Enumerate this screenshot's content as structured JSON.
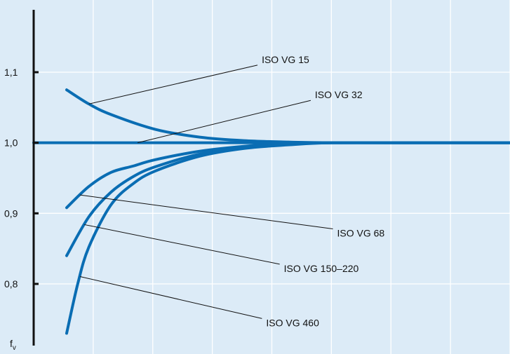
{
  "chart_data": {
    "type": "line",
    "title": "",
    "xlabel": "",
    "ylabel": "f",
    "ylabel_subscript": "v",
    "ylim": [
      0.72,
      1.1
    ],
    "yticks": [
      0.8,
      0.9,
      1.0,
      1.1
    ],
    "ytick_labels": [
      "0,8",
      "0,9",
      "1,0",
      "1,1"
    ],
    "x_gridlines": 8,
    "grid": true,
    "colors": {
      "series": "#0a6db3",
      "background": "#dcebf7",
      "grid": "#ffffff",
      "text": "#111111"
    },
    "series": [
      {
        "name": "ISO VG 15",
        "x": [
          0.0,
          0.05,
          0.1,
          0.2,
          0.3,
          0.4,
          0.5,
          0.6,
          0.8,
          1.0
        ],
        "y": [
          1.075,
          1.055,
          1.04,
          1.019,
          1.008,
          1.003,
          1.001,
          1.0,
          1.0,
          1.0
        ]
      },
      {
        "name": "ISO VG 32",
        "x": [
          -0.1,
          0.0,
          0.2,
          0.4,
          0.6,
          0.8,
          1.0
        ],
        "y": [
          1.0,
          1.0,
          1.0,
          1.0,
          1.0,
          1.0,
          1.0
        ]
      },
      {
        "name": "ISO VG 68",
        "x": [
          0.0,
          0.05,
          0.1,
          0.15,
          0.2,
          0.3,
          0.4,
          0.5,
          0.6,
          0.8,
          1.0
        ],
        "y": [
          0.908,
          0.938,
          0.958,
          0.967,
          0.976,
          0.988,
          0.995,
          0.999,
          1.0,
          1.0,
          1.0
        ]
      },
      {
        "name": "ISO VG 150–220",
        "x": [
          0.0,
          0.05,
          0.1,
          0.15,
          0.2,
          0.3,
          0.4,
          0.5,
          0.6,
          0.8,
          1.0
        ],
        "y": [
          0.84,
          0.895,
          0.93,
          0.952,
          0.966,
          0.984,
          0.993,
          0.998,
          1.0,
          1.0,
          1.0
        ]
      },
      {
        "name": "ISO VG 460",
        "x": [
          0.0,
          0.025,
          0.05,
          0.1,
          0.15,
          0.2,
          0.3,
          0.4,
          0.5,
          0.6,
          0.8,
          1.0
        ],
        "y": [
          0.73,
          0.8,
          0.852,
          0.912,
          0.942,
          0.96,
          0.981,
          0.992,
          0.997,
          1.0,
          1.0,
          1.0
        ]
      }
    ],
    "annotations": [
      {
        "text": "ISO VG 15",
        "series": 0,
        "at_x": 0.05,
        "label_x": 0.44,
        "label_y": 1.118
      },
      {
        "text": "ISO VG 32",
        "series": 1,
        "at_x": 0.16,
        "label_x": 0.56,
        "label_y": 1.068
      },
      {
        "text": "ISO VG 68",
        "series": 2,
        "at_x": 0.03,
        "label_x": 0.61,
        "label_y": 0.872
      },
      {
        "text": "ISO VG 150–220",
        "series": 3,
        "at_x": 0.04,
        "label_x": 0.49,
        "label_y": 0.822
      },
      {
        "text": "ISO VG 460",
        "series": 4,
        "at_x": 0.03,
        "label_x": 0.45,
        "label_y": 0.745
      }
    ]
  }
}
